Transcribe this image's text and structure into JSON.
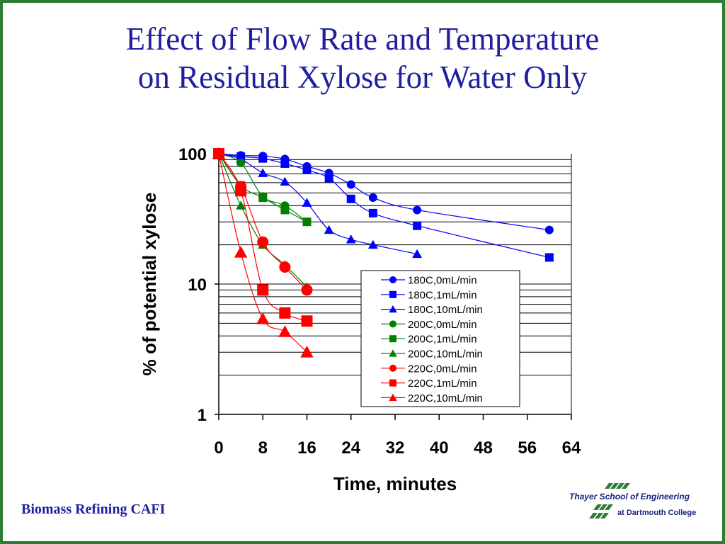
{
  "slide": {
    "title_line1": "Effect of Flow Rate and Temperature",
    "title_line2": "on Residual Xylose for Water Only",
    "footer": "Biomass Refining CAFI",
    "logo_line1": "Thayer School of Engineering",
    "logo_line2": "at Dartmouth College",
    "colors": {
      "title": "#1f1fa0",
      "border": "#2e7d32",
      "logo": "#1a237e"
    }
  },
  "chart_data": {
    "type": "scatter",
    "title": "",
    "xlabel": "Time, minutes",
    "ylabel": "% of potential xylose",
    "xlim": [
      0,
      64
    ],
    "ylim": [
      1,
      100
    ],
    "y_scale": "log",
    "x_ticks": [
      0,
      8,
      16,
      24,
      32,
      40,
      48,
      56,
      64
    ],
    "y_ticks": [
      1,
      10,
      100
    ],
    "grid": "horizontal",
    "legend_position": "lower-right",
    "series": [
      {
        "name": "180C,0mL/min",
        "color": "#0000ff",
        "marker": "circle",
        "x": [
          0,
          4,
          8,
          12,
          16,
          20,
          24,
          28,
          36,
          60
        ],
        "y": [
          100,
          97,
          96,
          91,
          80,
          71,
          58,
          46,
          37,
          26
        ]
      },
      {
        "name": "180C,1mL/min",
        "color": "#0000ff",
        "marker": "square",
        "x": [
          0,
          4,
          8,
          12,
          16,
          20,
          24,
          28,
          36,
          60
        ],
        "y": [
          100,
          95,
          92,
          84,
          75,
          65,
          45,
          35,
          28,
          16
        ]
      },
      {
        "name": "180C,10mL/min",
        "color": "#0000ff",
        "marker": "triangle",
        "x": [
          0,
          4,
          8,
          12,
          16,
          20,
          24,
          28,
          36
        ],
        "y": [
          100,
          91,
          71,
          61,
          42,
          26,
          22,
          20,
          17
        ]
      },
      {
        "name": "200C,0mL/min",
        "color": "#008000",
        "marker": "circle",
        "x": [
          0,
          4,
          8,
          12,
          16
        ],
        "y": [
          100,
          85,
          47,
          40,
          30
        ]
      },
      {
        "name": "200C,1mL/min",
        "color": "#008000",
        "marker": "square",
        "x": [
          0,
          4,
          8,
          12,
          16
        ],
        "y": [
          100,
          57,
          46,
          37,
          30
        ]
      },
      {
        "name": "200C,10mL/min",
        "color": "#008000",
        "marker": "triangle",
        "x": [
          0,
          4,
          8,
          12,
          16
        ],
        "y": [
          100,
          40,
          20,
          14,
          9.5
        ]
      },
      {
        "name": "220C,0mL/min",
        "color": "#ff0000",
        "marker": "circle",
        "x": [
          0,
          4,
          8,
          12,
          16
        ],
        "y": [
          100,
          56,
          21,
          13.5,
          9
        ]
      },
      {
        "name": "220C,1mL/min",
        "color": "#ff0000",
        "marker": "square",
        "x": [
          0,
          4,
          8,
          12,
          16
        ],
        "y": [
          100,
          52,
          9,
          6,
          5.2
        ]
      },
      {
        "name": "220C,10mL/min",
        "color": "#ff0000",
        "marker": "triangle",
        "x": [
          0,
          4,
          8,
          12,
          16
        ],
        "y": [
          100,
          17.5,
          5.4,
          4.3,
          3
        ]
      }
    ]
  }
}
